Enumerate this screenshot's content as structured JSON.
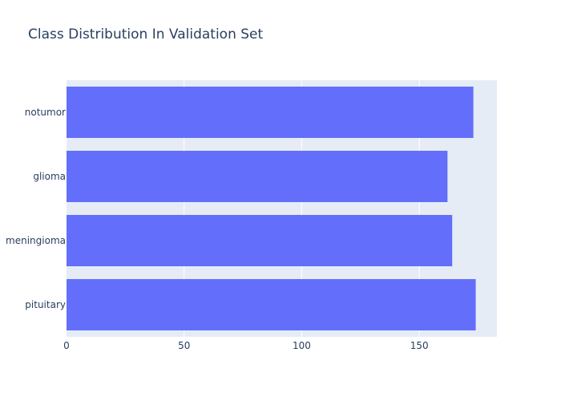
{
  "chart_data": {
    "type": "bar",
    "orientation": "horizontal",
    "title": "Class Distribution In Validation Set",
    "xlabel": "",
    "ylabel": "",
    "categories": [
      "notumor",
      "glioma",
      "meningioma",
      "pituitary"
    ],
    "values": [
      173,
      162,
      164,
      174
    ],
    "xlim": [
      0,
      183
    ],
    "xticks": [
      0,
      50,
      100,
      150
    ],
    "grid": true,
    "legend": "none",
    "colors": {
      "bar": "#636efa",
      "plot_background": "#e5ecf6",
      "grid": "#ffffff",
      "text": "#2a3f5f"
    }
  }
}
